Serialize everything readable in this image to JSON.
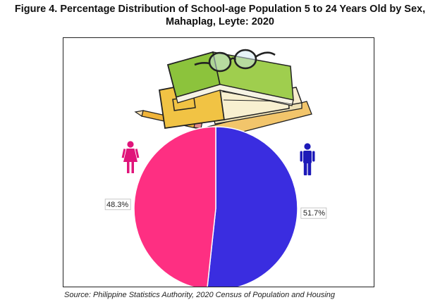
{
  "figure": {
    "title_line1": "Figure 4. Percentage Distribution of School-age Population 5 to 24 Years Old by Sex,",
    "title_line2": "Mahaplag, Leyte: 2020",
    "source": "Source: Philippine Statistics Authority, 2020 Census of Population and Housing"
  },
  "icons": {
    "female": "female-person-icon",
    "male": "male-person-icon",
    "decoration": "books-glasses-pencil-ruler-illustration"
  },
  "chart_data": {
    "type": "pie",
    "title": "",
    "start_angle_deg": 0,
    "direction": "clockwise",
    "slices": [
      {
        "name": "",
        "value": 51.7,
        "label": "51.7%",
        "color": "#3a2de0"
      },
      {
        "name": "",
        "value": 48.3,
        "label": "48.3%",
        "color": "#fe2f82"
      }
    ],
    "legend": "none"
  }
}
